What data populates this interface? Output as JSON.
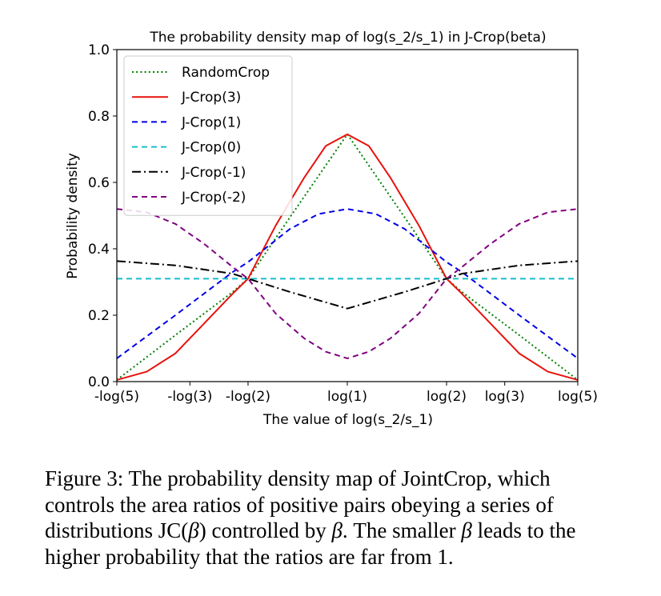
{
  "chart_data": {
    "type": "line",
    "title": "The probability density map of log(s_2/s_1) in J-Crop(beta)",
    "xlabel": "The value of log(s_2/s_1)",
    "ylabel": "Probability density",
    "xlim": [
      -1.609,
      1.609
    ],
    "ylim": [
      0,
      1.0
    ],
    "x_ticks": [
      {
        "value": -1.609,
        "label": "-log(5)"
      },
      {
        "value": -1.099,
        "label": "-log(3)"
      },
      {
        "value": -0.693,
        "label": "-log(2)"
      },
      {
        "value": 0.0,
        "label": "log(1)"
      },
      {
        "value": 0.693,
        "label": "log(2)"
      },
      {
        "value": 1.099,
        "label": "log(3)"
      },
      {
        "value": 1.609,
        "label": "log(5)"
      }
    ],
    "y_ticks": [
      {
        "value": 0.0,
        "label": "0.0"
      },
      {
        "value": 0.2,
        "label": "0.2"
      },
      {
        "value": 0.4,
        "label": "0.4"
      },
      {
        "value": 0.6,
        "label": "0.6"
      },
      {
        "value": 0.8,
        "label": "0.8"
      },
      {
        "value": 1.0,
        "label": "1.0"
      }
    ],
    "legend_position": "top-left",
    "series": [
      {
        "name": "RandomCrop",
        "color": "#008000",
        "style": "dotted",
        "x": [
          -1.609,
          -1.2,
          -0.8,
          -0.693,
          -0.4,
          0.0,
          0.4,
          0.693,
          0.8,
          1.2,
          1.609
        ],
        "y": [
          0.005,
          0.14,
          0.27,
          0.31,
          0.495,
          0.745,
          0.495,
          0.31,
          0.27,
          0.14,
          0.005
        ]
      },
      {
        "name": "J-Crop(3)",
        "color": "#e8120c",
        "style": "solid",
        "x": [
          -1.609,
          -1.4,
          -1.2,
          -1.0,
          -0.8,
          -0.693,
          -0.5,
          -0.3,
          -0.15,
          0.0,
          0.15,
          0.3,
          0.5,
          0.693,
          0.8,
          1.0,
          1.2,
          1.4,
          1.609
        ],
        "y": [
          0.005,
          0.03,
          0.085,
          0.175,
          0.265,
          0.31,
          0.47,
          0.615,
          0.71,
          0.745,
          0.71,
          0.615,
          0.47,
          0.31,
          0.265,
          0.175,
          0.085,
          0.03,
          0.005
        ]
      },
      {
        "name": "J-Crop(1)",
        "color": "#0000e6",
        "style": "dashed",
        "x": [
          -1.609,
          -1.2,
          -0.8,
          -0.693,
          -0.4,
          -0.2,
          0.0,
          0.2,
          0.4,
          0.693,
          0.8,
          1.2,
          1.609
        ],
        "y": [
          0.07,
          0.2,
          0.33,
          0.36,
          0.46,
          0.505,
          0.52,
          0.505,
          0.46,
          0.36,
          0.33,
          0.2,
          0.07
        ]
      },
      {
        "name": "J-Crop(0)",
        "color": "#17becf",
        "style": "dashed",
        "x": [
          -1.609,
          1.609
        ],
        "y": [
          0.31,
          0.31
        ]
      },
      {
        "name": "J-Crop(-1)",
        "color": "#000000",
        "style": "dashdot",
        "x": [
          -1.609,
          -1.2,
          -0.8,
          -0.693,
          -0.4,
          0.0,
          0.4,
          0.693,
          0.8,
          1.2,
          1.609
        ],
        "y": [
          0.363,
          0.35,
          0.325,
          0.31,
          0.27,
          0.22,
          0.27,
          0.31,
          0.325,
          0.35,
          0.363
        ]
      },
      {
        "name": "J-Crop(-2)",
        "color": "#800080",
        "style": "dashed",
        "x": [
          -1.609,
          -1.4,
          -1.2,
          -1.0,
          -0.8,
          -0.693,
          -0.5,
          -0.3,
          -0.15,
          0.0,
          0.15,
          0.3,
          0.5,
          0.693,
          0.8,
          1.0,
          1.2,
          1.4,
          1.609
        ],
        "y": [
          0.52,
          0.51,
          0.475,
          0.415,
          0.345,
          0.31,
          0.205,
          0.13,
          0.09,
          0.07,
          0.09,
          0.13,
          0.205,
          0.31,
          0.345,
          0.415,
          0.475,
          0.51,
          0.52
        ]
      }
    ]
  },
  "caption": {
    "prefix": "Figure 3: The probability density map of JointCrop, which controls the area ratios of positive pairs obeying a series of distributions JC(",
    "beta1": "β",
    "middle": ") controlled by ",
    "beta2": "β",
    "middle2": ". The smaller ",
    "beta3": "β",
    "suffix": " leads to the higher probability that the ratios are far from 1."
  }
}
